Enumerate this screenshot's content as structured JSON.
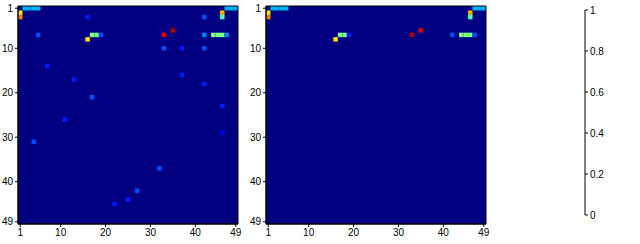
{
  "chart_data": [
    {
      "type": "heatmap",
      "xlim": [
        0.5,
        49.5
      ],
      "ylim": [
        0.5,
        49.5
      ],
      "xticks": [
        1,
        10,
        20,
        30,
        40,
        49
      ],
      "yticks": [
        1,
        10,
        20,
        30,
        40,
        49
      ],
      "default_value": 0,
      "cells": [
        {
          "row": 1,
          "col": 2,
          "value": 0.3
        },
        {
          "row": 1,
          "col": 3,
          "value": 0.3
        },
        {
          "row": 1,
          "col": 4,
          "value": 0.3
        },
        {
          "row": 1,
          "col": 5,
          "value": 0.3
        },
        {
          "row": 2,
          "col": 1,
          "value": 0.65
        },
        {
          "row": 3,
          "col": 1,
          "value": 0.75
        },
        {
          "row": 1,
          "col": 47,
          "value": 0.3
        },
        {
          "row": 1,
          "col": 48,
          "value": 0.3
        },
        {
          "row": 1,
          "col": 49,
          "value": 0.3
        },
        {
          "row": 2,
          "col": 46,
          "value": 0.7
        },
        {
          "row": 3,
          "col": 46,
          "value": 0.45
        },
        {
          "row": 3,
          "col": 42,
          "value": 0.2
        },
        {
          "row": 3,
          "col": 16,
          "value": 0.15
        },
        {
          "row": 7,
          "col": 5,
          "value": 0.2
        },
        {
          "row": 7,
          "col": 17,
          "value": 0.5
        },
        {
          "row": 7,
          "col": 18,
          "value": 0.5
        },
        {
          "row": 8,
          "col": 16,
          "value": 0.65
        },
        {
          "row": 7,
          "col": 19,
          "value": 0.2
        },
        {
          "row": 7,
          "col": 33,
          "value": 0.9
        },
        {
          "row": 6,
          "col": 35,
          "value": 0.95
        },
        {
          "row": 10,
          "col": 33,
          "value": 0.2
        },
        {
          "row": 10,
          "col": 37,
          "value": 0.15
        },
        {
          "row": 7,
          "col": 42,
          "value": 0.25
        },
        {
          "row": 10,
          "col": 42,
          "value": 0.2
        },
        {
          "row": 7,
          "col": 44,
          "value": 0.5
        },
        {
          "row": 7,
          "col": 45,
          "value": 0.5
        },
        {
          "row": 7,
          "col": 46,
          "value": 0.5
        },
        {
          "row": 7,
          "col": 47,
          "value": 0.25
        },
        {
          "row": 14,
          "col": 7,
          "value": 0.15
        },
        {
          "row": 17,
          "col": 13,
          "value": 0.15
        },
        {
          "row": 21,
          "col": 17,
          "value": 0.2
        },
        {
          "row": 26,
          "col": 11,
          "value": 0.15
        },
        {
          "row": 31,
          "col": 4,
          "value": 0.2
        },
        {
          "row": 16,
          "col": 37,
          "value": 0.15
        },
        {
          "row": 18,
          "col": 42,
          "value": 0.15
        },
        {
          "row": 23,
          "col": 46,
          "value": 0.15
        },
        {
          "row": 37,
          "col": 32,
          "value": 0.2
        },
        {
          "row": 42,
          "col": 27,
          "value": 0.2
        },
        {
          "row": 44,
          "col": 25,
          "value": 0.15
        },
        {
          "row": 45,
          "col": 22,
          "value": 0.15
        },
        {
          "row": 29,
          "col": 46,
          "value": 0.1
        }
      ]
    },
    {
      "type": "heatmap",
      "xlim": [
        0.5,
        49.5
      ],
      "ylim": [
        0.5,
        49.5
      ],
      "xticks": [
        1,
        10,
        20,
        30,
        40,
        49
      ],
      "yticks": [
        1,
        10,
        20,
        30,
        40,
        49
      ],
      "default_value": 0,
      "colorbar_range": [
        0,
        1
      ],
      "colorbar_ticks": [
        0,
        0.2,
        0.4,
        0.6,
        0.8,
        1
      ],
      "cells": [
        {
          "row": 1,
          "col": 2,
          "value": 0.3
        },
        {
          "row": 1,
          "col": 3,
          "value": 0.3
        },
        {
          "row": 1,
          "col": 4,
          "value": 0.3
        },
        {
          "row": 1,
          "col": 5,
          "value": 0.3
        },
        {
          "row": 2,
          "col": 1,
          "value": 0.65
        },
        {
          "row": 3,
          "col": 1,
          "value": 0.75
        },
        {
          "row": 1,
          "col": 47,
          "value": 0.3
        },
        {
          "row": 1,
          "col": 48,
          "value": 0.3
        },
        {
          "row": 1,
          "col": 49,
          "value": 0.3
        },
        {
          "row": 2,
          "col": 46,
          "value": 0.7
        },
        {
          "row": 3,
          "col": 46,
          "value": 0.45
        },
        {
          "row": 6,
          "col": 35,
          "value": 0.9
        },
        {
          "row": 7,
          "col": 33,
          "value": 0.95
        },
        {
          "row": 8,
          "col": 16,
          "value": 0.65
        },
        {
          "row": 7,
          "col": 17,
          "value": 0.5
        },
        {
          "row": 7,
          "col": 18,
          "value": 0.5
        },
        {
          "row": 7,
          "col": 19,
          "value": 0.15
        },
        {
          "row": 7,
          "col": 42,
          "value": 0.2
        },
        {
          "row": 7,
          "col": 44,
          "value": 0.5
        },
        {
          "row": 7,
          "col": 45,
          "value": 0.5
        },
        {
          "row": 7,
          "col": 46,
          "value": 0.5
        },
        {
          "row": 7,
          "col": 47,
          "value": 0.2
        }
      ]
    }
  ]
}
